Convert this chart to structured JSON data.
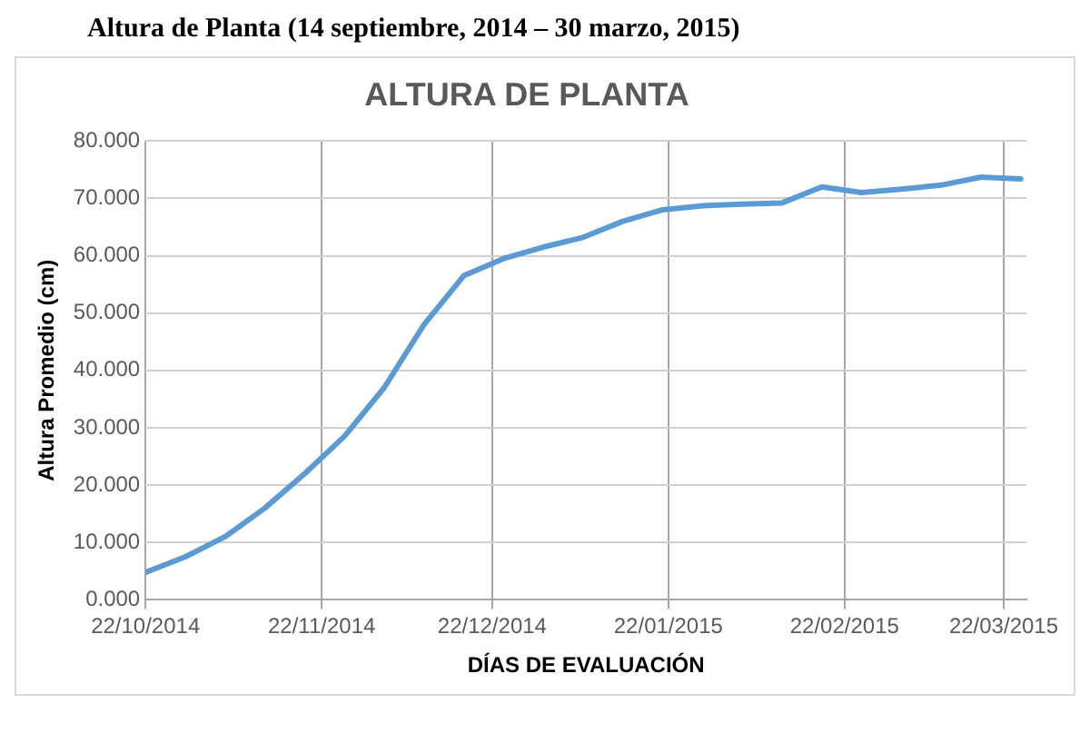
{
  "chart_data": {
    "type": "line",
    "title": "ALTURA DE PLANTA",
    "xlabel": "DÍAS DE EVALUACIÓN",
    "ylabel": "Altura Promedio (cm)",
    "annotations": [
      "Altura de Planta (14 septiembre, 2014 – 30 marzo, 2015)"
    ],
    "x": [
      "2014-10-22",
      "2014-10-29",
      "2014-11-05",
      "2014-11-12",
      "2014-11-19",
      "2014-11-26",
      "2014-12-03",
      "2014-12-10",
      "2014-12-17",
      "2014-12-24",
      "2014-12-31",
      "2015-01-07",
      "2015-01-14",
      "2015-01-21",
      "2015-01-28",
      "2015-02-04",
      "2015-02-11",
      "2015-02-18",
      "2015-02-25",
      "2015-03-04",
      "2015-03-11",
      "2015-03-18",
      "2015-03-25"
    ],
    "series": [
      {
        "color": "#5b9bd5",
        "values": [
          4.8,
          7.5,
          11,
          16,
          22,
          28.5,
          37,
          48,
          56.5,
          59.5,
          61.5,
          63.2,
          66,
          68,
          68.7,
          69,
          69.2,
          72,
          71,
          71.6,
          72.3,
          73.7,
          73.4
        ]
      }
    ],
    "xlim": [
      "2014-10-22",
      "2015-03-26"
    ],
    "xticks": [
      {
        "value": "2014-10-22",
        "label": "22/10/2014"
      },
      {
        "value": "2014-11-22",
        "label": "22/11/2014"
      },
      {
        "value": "2014-12-22",
        "label": "22/12/2014"
      },
      {
        "value": "2015-01-22",
        "label": "22/01/2015"
      },
      {
        "value": "2015-02-22",
        "label": "22/02/2015"
      },
      {
        "value": "2015-03-22",
        "label": "22/03/2015"
      }
    ],
    "ylim": [
      0,
      80
    ],
    "yticks": [
      {
        "value": 0,
        "label": "0.000"
      },
      {
        "value": 10,
        "label": "10.000"
      },
      {
        "value": 20,
        "label": "20.000"
      },
      {
        "value": 30,
        "label": "30.000"
      },
      {
        "value": 40,
        "label": "40.000"
      },
      {
        "value": 50,
        "label": "50.000"
      },
      {
        "value": 60,
        "label": "60.000"
      },
      {
        "value": 70,
        "label": "70.000"
      },
      {
        "value": 80,
        "label": "80.000"
      }
    ],
    "grid": true,
    "legend": false,
    "marker": "none",
    "line_style": "solid"
  }
}
